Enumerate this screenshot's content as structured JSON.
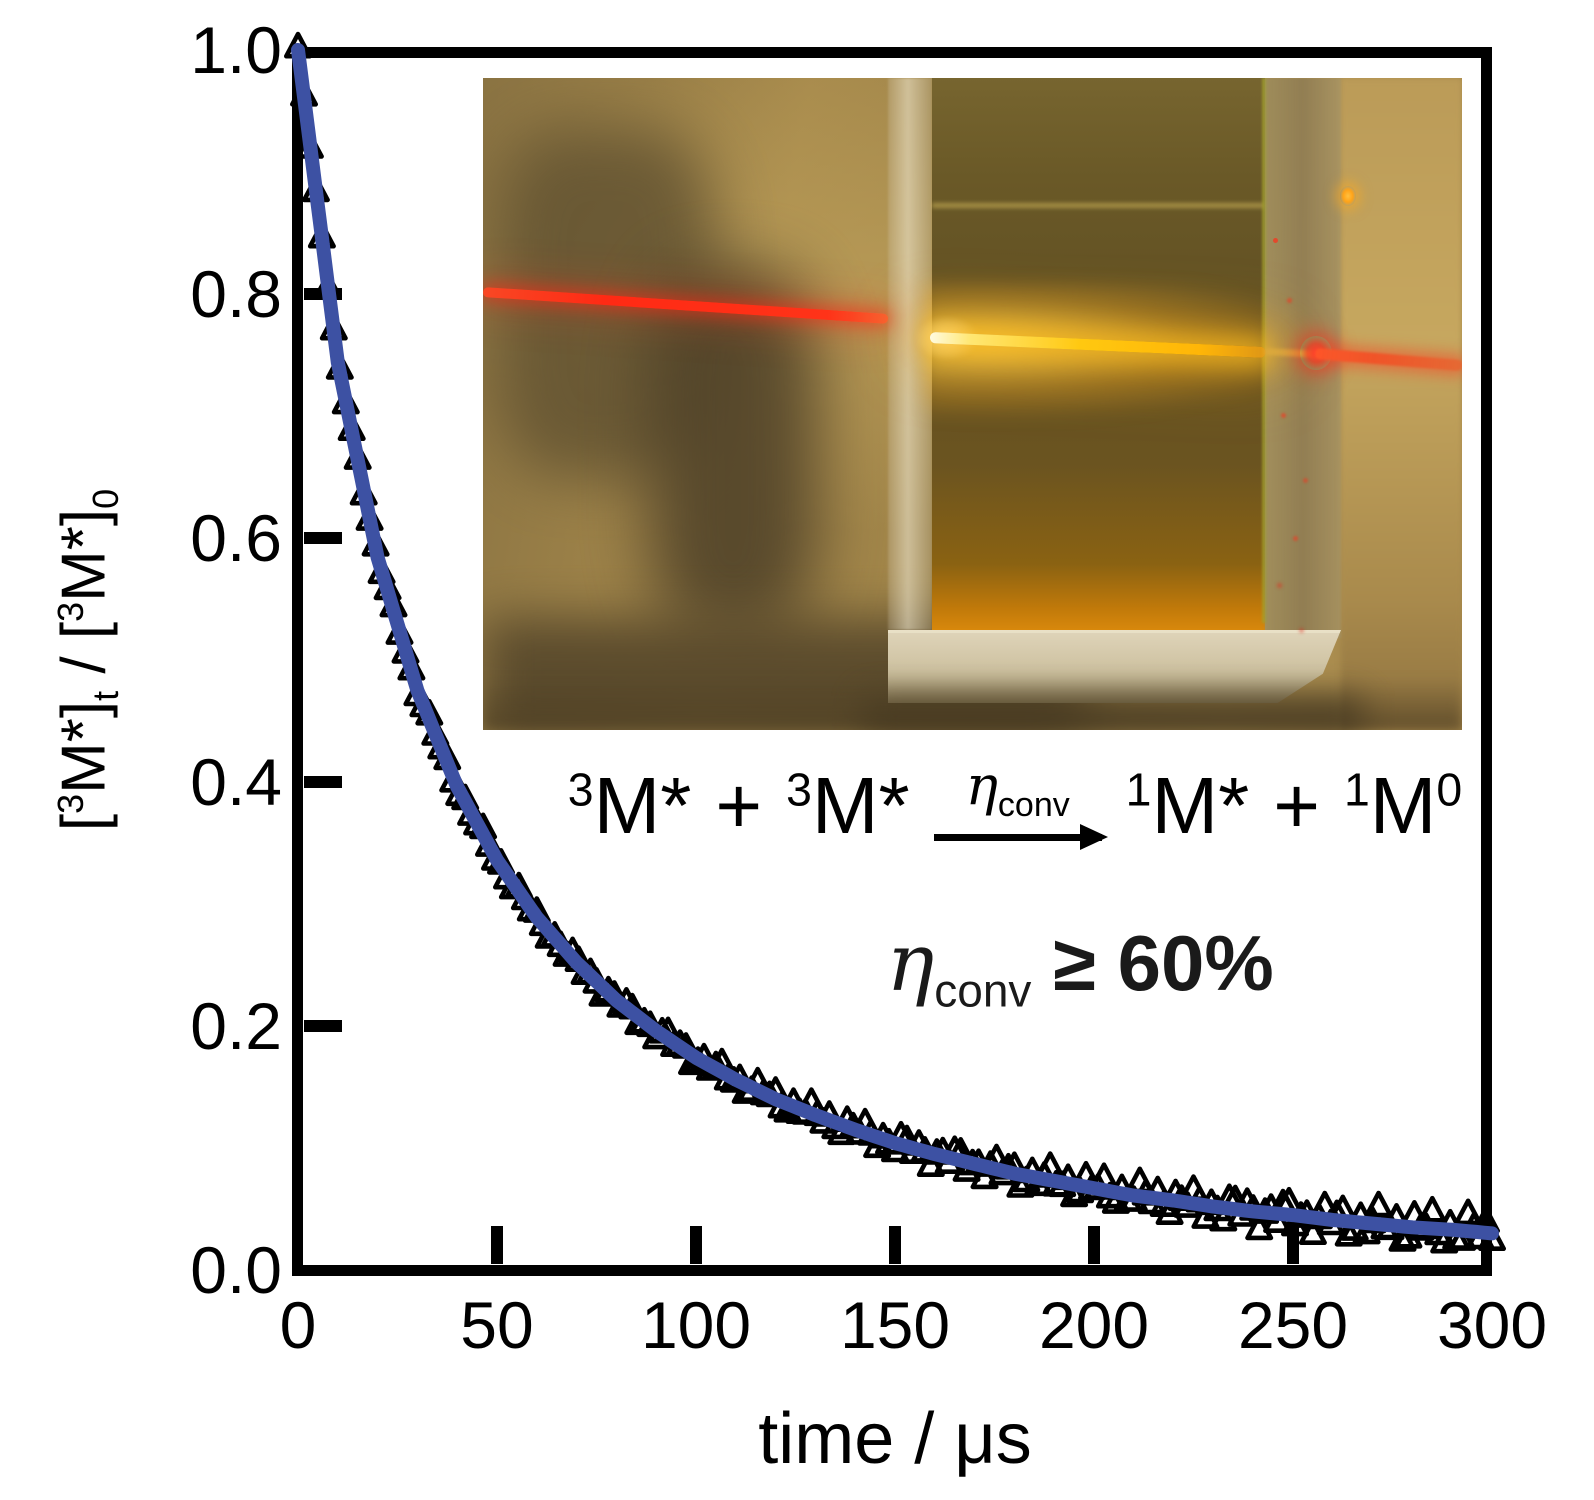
{
  "axes": {
    "x": {
      "title": "time / μs",
      "tick_labels": [
        "0",
        "50",
        "100",
        "150",
        "200",
        "250",
        "300"
      ],
      "tick_values": [
        0,
        50,
        100,
        150,
        200,
        250,
        300
      ],
      "range": [
        0,
        300
      ]
    },
    "y": {
      "tick_labels": [
        "1.0",
        "0.8",
        "0.6",
        "0.4",
        "0.2",
        "0.0"
      ],
      "tick_values": [
        1.0,
        0.8,
        0.6,
        0.4,
        0.2,
        0.0
      ],
      "range": [
        0,
        1
      ],
      "title_parts": {
        "open1": "[",
        "sup1": "3",
        "m1": "M*]",
        "sub1": "t",
        "mid": " / ",
        "open2": "[",
        "sup2": "3",
        "m2": "M*]",
        "sub2": "0"
      }
    }
  },
  "equation": {
    "sup_a": "3",
    "mol_a": "M*",
    "plus_a": "+",
    "sup_b": "3",
    "mol_b": "M*",
    "eta": "η",
    "eta_sub": "conv",
    "sup_c": "1",
    "mol_c": "M*",
    "plus_b": "+",
    "sup_d": "1",
    "mol_d": "M",
    "sup_d2": "0"
  },
  "efficiency": {
    "eta": "η",
    "sub": "conv",
    "relation_value": "≥ 60%"
  },
  "colors": {
    "axis": "#000000",
    "marker": "#000000",
    "fit_line": "#3d51a3",
    "laser_red": "#ff2a14",
    "exit_red": "#f05428",
    "emission_core": "#fff3b8",
    "emission_yellow": "#ffc410",
    "liquid_amber": "#615023",
    "liquid_orange_bottom": "#c0790a",
    "background_tan": "#a18549",
    "glass_light": "#d8cdb2",
    "glow_dot_orange": "#ffa318"
  },
  "inset_photo": {
    "alt": "photograph of a quartz cuvette filled with amber liquid; a red laser beam enters from the left and produces a bright yellow upconverted emission line inside the liquid, exiting as a red beam on the right"
  },
  "chart_data": {
    "type": "scatter",
    "title": "",
    "xlabel": "time / μs",
    "ylabel": "[3M*]t / [3M*]0",
    "xlim": [
      0,
      300
    ],
    "ylim": [
      0,
      1
    ],
    "x_ticks": [
      0,
      50,
      100,
      150,
      200,
      250,
      300
    ],
    "y_ticks": [
      0.0,
      0.2,
      0.4,
      0.6,
      0.8,
      1.0
    ],
    "grid": false,
    "legend": "none",
    "series": [
      {
        "name": "triplet decay data",
        "style": "scatter",
        "marker": "open-triangle-up",
        "color": "#000000",
        "x": [
          0,
          10,
          20,
          30,
          40,
          50,
          60,
          70,
          80,
          90,
          100,
          110,
          120,
          130,
          140,
          150,
          160,
          170,
          180,
          190,
          200,
          210,
          220,
          230,
          240,
          250,
          260,
          270,
          280,
          290,
          300
        ],
        "y": [
          1.0,
          0.744,
          0.584,
          0.475,
          0.396,
          0.336,
          0.289,
          0.252,
          0.221,
          0.196,
          0.174,
          0.156,
          0.14,
          0.127,
          0.115,
          0.104,
          0.095,
          0.087,
          0.079,
          0.073,
          0.067,
          0.061,
          0.057,
          0.052,
          0.048,
          0.045,
          0.041,
          0.038,
          0.035,
          0.033,
          0.03
        ],
        "annotation": "3M* + 3M* --ηconv--> 1M* + 1M0"
      },
      {
        "name": "fit",
        "style": "line",
        "color": "#3d51a3",
        "x": [
          0,
          10,
          20,
          30,
          40,
          50,
          60,
          70,
          80,
          90,
          100,
          110,
          120,
          130,
          140,
          150,
          160,
          170,
          180,
          190,
          200,
          210,
          220,
          230,
          240,
          250,
          260,
          270,
          280,
          290,
          300
        ],
        "y": [
          1.0,
          0.744,
          0.584,
          0.475,
          0.396,
          0.336,
          0.289,
          0.252,
          0.221,
          0.196,
          0.174,
          0.156,
          0.14,
          0.127,
          0.115,
          0.104,
          0.095,
          0.087,
          0.079,
          0.073,
          0.067,
          0.061,
          0.057,
          0.052,
          0.048,
          0.045,
          0.041,
          0.038,
          0.035,
          0.033,
          0.03
        ]
      }
    ],
    "annotations": [
      "3M* + 3M*  →(ηconv)  1M* + 1M0",
      "ηconv ≥ 60%"
    ]
  }
}
